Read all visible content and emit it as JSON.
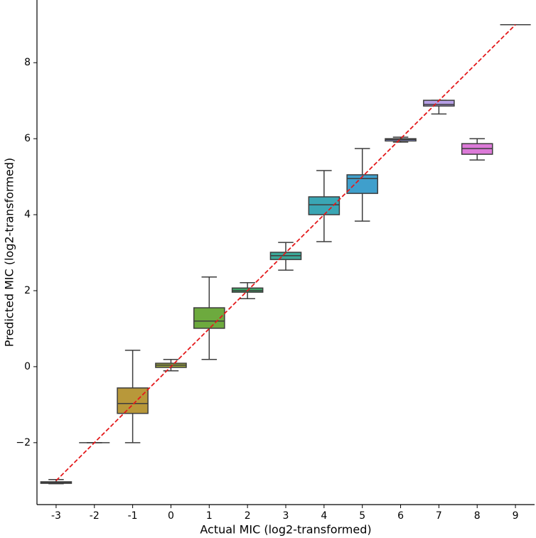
{
  "chart_data": {
    "type": "box",
    "x_label": "Actual MIC (log2-transformed)",
    "y_label": "Predicted MIC (log2-transformed)",
    "categories": [
      -3,
      -2,
      -1,
      0,
      1,
      2,
      3,
      4,
      5,
      6,
      7,
      8,
      9
    ],
    "colors": [
      "#e0707c",
      "#d98636",
      "#b8983a",
      "#9aa43c",
      "#6daa3e",
      "#3fa466",
      "#3aa898",
      "#3aa6b4",
      "#3f9fcc",
      "#8f97dd",
      "#b69fe6",
      "#dc7ad8",
      "#e07aa8"
    ],
    "boxes": [
      {
        "whislo": -3.08,
        "q1": -3.07,
        "median": -3.05,
        "q3": -3.03,
        "whishi": -2.97
      },
      {
        "whislo": -2,
        "q1": -2,
        "median": -2,
        "q3": -2,
        "whishi": -2
      },
      {
        "whislo": -2,
        "q1": -1.23,
        "median": -0.97,
        "q3": -0.56,
        "whishi": 0.43
      },
      {
        "whislo": -0.11,
        "q1": -0.02,
        "median": 0.04,
        "q3": 0.09,
        "whishi": 0.19
      },
      {
        "whislo": 0.19,
        "q1": 1.01,
        "median": 1.2,
        "q3": 1.55,
        "whishi": 2.36
      },
      {
        "whislo": 1.79,
        "q1": 1.96,
        "median": 2.0,
        "q3": 2.07,
        "whishi": 2.21
      },
      {
        "whislo": 2.54,
        "q1": 2.82,
        "median": 2.92,
        "q3": 3.01,
        "whishi": 3.27
      },
      {
        "whislo": 3.29,
        "q1": 4.0,
        "median": 4.26,
        "q3": 4.47,
        "whishi": 5.16
      },
      {
        "whislo": 3.83,
        "q1": 4.56,
        "median": 4.95,
        "q3": 5.05,
        "whishi": 5.74
      },
      {
        "whislo": 5.91,
        "q1": 5.94,
        "median": 5.98,
        "q3": 6.0,
        "whishi": 6.04
      },
      {
        "whislo": 6.65,
        "q1": 6.86,
        "median": 6.9,
        "q3": 7.01,
        "whishi": 7.01
      },
      {
        "whislo": 5.44,
        "q1": 5.59,
        "median": 5.74,
        "q3": 5.87,
        "whishi": 6.0
      },
      {
        "whislo": 9,
        "q1": 9,
        "median": 9,
        "q3": 9,
        "whishi": 9
      }
    ],
    "reference_line": {
      "from": -3,
      "to": 9,
      "color": "#e41a1c",
      "dashed": true
    },
    "ylim": [
      -3.63,
      9.65
    ],
    "yticks": [
      {
        "value": -2,
        "label": "−2"
      },
      0,
      2,
      4,
      6,
      8
    ],
    "grid": false
  }
}
